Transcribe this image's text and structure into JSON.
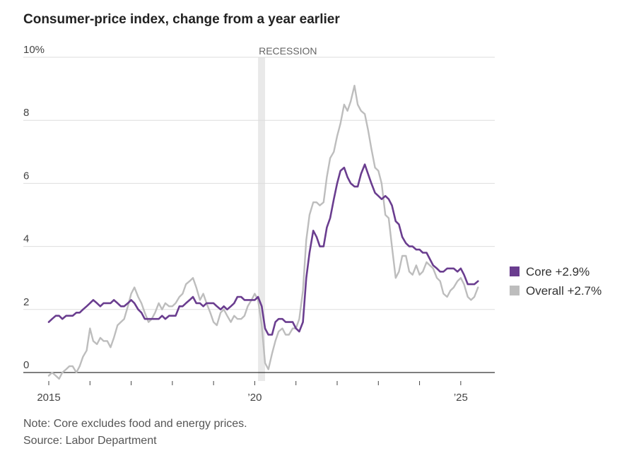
{
  "chart_data": {
    "type": "line",
    "title": "Consumer-price index, change from a year earlier",
    "note": "Note: Core excludes food and energy prices.",
    "source": "Source: Labor Department",
    "ylim": [
      0,
      10
    ],
    "y_ticks": [
      {
        "value": 0,
        "label": "0"
      },
      {
        "value": 2,
        "label": "2"
      },
      {
        "value": 4,
        "label": "4"
      },
      {
        "value": 6,
        "label": "6"
      },
      {
        "value": 8,
        "label": "8"
      },
      {
        "value": 10,
        "label": "10%"
      }
    ],
    "xlim": [
      2015.0,
      2025.5
    ],
    "x_ticks": [
      {
        "value": 2015,
        "label": "2015"
      },
      {
        "value": 2016,
        "label": ""
      },
      {
        "value": 2017,
        "label": ""
      },
      {
        "value": 2018,
        "label": ""
      },
      {
        "value": 2019,
        "label": ""
      },
      {
        "value": 2020,
        "label": "’20"
      },
      {
        "value": 2021,
        "label": ""
      },
      {
        "value": 2022,
        "label": ""
      },
      {
        "value": 2023,
        "label": ""
      },
      {
        "value": 2024,
        "label": ""
      },
      {
        "value": 2025,
        "label": "’25"
      }
    ],
    "recession": {
      "label": "RECESSION",
      "start": 2020.08,
      "end": 2020.25
    },
    "grid": true,
    "legend_position": "right",
    "x": [
      2015.0,
      2015.08,
      2015.17,
      2015.25,
      2015.33,
      2015.42,
      2015.5,
      2015.58,
      2015.67,
      2015.75,
      2015.83,
      2015.92,
      2016.0,
      2016.08,
      2016.17,
      2016.25,
      2016.33,
      2016.42,
      2016.5,
      2016.58,
      2016.67,
      2016.75,
      2016.83,
      2016.92,
      2017.0,
      2017.08,
      2017.17,
      2017.25,
      2017.33,
      2017.42,
      2017.5,
      2017.58,
      2017.67,
      2017.75,
      2017.83,
      2017.92,
      2018.0,
      2018.08,
      2018.17,
      2018.25,
      2018.33,
      2018.42,
      2018.5,
      2018.58,
      2018.67,
      2018.75,
      2018.83,
      2018.92,
      2019.0,
      2019.08,
      2019.17,
      2019.25,
      2019.33,
      2019.42,
      2019.5,
      2019.58,
      2019.67,
      2019.75,
      2019.83,
      2019.92,
      2020.0,
      2020.08,
      2020.17,
      2020.25,
      2020.33,
      2020.42,
      2020.5,
      2020.58,
      2020.67,
      2020.75,
      2020.83,
      2020.92,
      2021.0,
      2021.08,
      2021.17,
      2021.25,
      2021.33,
      2021.42,
      2021.5,
      2021.58,
      2021.67,
      2021.75,
      2021.83,
      2021.92,
      2022.0,
      2022.08,
      2022.17,
      2022.25,
      2022.33,
      2022.42,
      2022.5,
      2022.58,
      2022.67,
      2022.75,
      2022.83,
      2022.92,
      2023.0,
      2023.08,
      2023.17,
      2023.25,
      2023.33,
      2023.42,
      2023.5,
      2023.58,
      2023.67,
      2023.75,
      2023.83,
      2023.92,
      2024.0,
      2024.08,
      2024.17,
      2024.25,
      2024.33,
      2024.42,
      2024.5,
      2024.58,
      2024.67,
      2024.75,
      2024.83,
      2024.92,
      2025.0,
      2025.08,
      2025.17,
      2025.25,
      2025.33,
      2025.42
    ],
    "series": [
      {
        "name": "Core",
        "legend_label": "Core +2.9%",
        "color": "#6a3d8f",
        "values": [
          1.6,
          1.7,
          1.8,
          1.8,
          1.7,
          1.8,
          1.8,
          1.8,
          1.9,
          1.9,
          2.0,
          2.1,
          2.2,
          2.3,
          2.2,
          2.1,
          2.2,
          2.2,
          2.2,
          2.3,
          2.2,
          2.1,
          2.1,
          2.2,
          2.3,
          2.2,
          2.0,
          1.9,
          1.7,
          1.7,
          1.7,
          1.7,
          1.7,
          1.8,
          1.7,
          1.8,
          1.8,
          1.8,
          2.1,
          2.1,
          2.2,
          2.3,
          2.4,
          2.2,
          2.2,
          2.1,
          2.2,
          2.2,
          2.2,
          2.1,
          2.0,
          2.1,
          2.0,
          2.1,
          2.2,
          2.4,
          2.4,
          2.3,
          2.3,
          2.3,
          2.3,
          2.4,
          2.1,
          1.4,
          1.2,
          1.2,
          1.6,
          1.7,
          1.7,
          1.6,
          1.6,
          1.6,
          1.4,
          1.3,
          1.6,
          3.0,
          3.8,
          4.5,
          4.3,
          4.0,
          4.0,
          4.6,
          4.9,
          5.5,
          6.0,
          6.4,
          6.5,
          6.2,
          6.0,
          5.9,
          5.9,
          6.3,
          6.6,
          6.3,
          6.0,
          5.7,
          5.6,
          5.5,
          5.6,
          5.5,
          5.3,
          4.8,
          4.7,
          4.3,
          4.1,
          4.0,
          4.0,
          3.9,
          3.9,
          3.8,
          3.8,
          3.6,
          3.4,
          3.3,
          3.2,
          3.2,
          3.3,
          3.3,
          3.3,
          3.2,
          3.3,
          3.1,
          2.8,
          2.8,
          2.8,
          2.9
        ]
      },
      {
        "name": "Overall",
        "legend_label": "Overall +2.7%",
        "color": "#bdbdbd",
        "values": [
          -0.1,
          0.0,
          -0.1,
          -0.2,
          0.0,
          0.1,
          0.2,
          0.2,
          0.0,
          0.2,
          0.5,
          0.7,
          1.4,
          1.0,
          0.9,
          1.1,
          1.0,
          1.0,
          0.8,
          1.1,
          1.5,
          1.6,
          1.7,
          2.1,
          2.5,
          2.7,
          2.4,
          2.2,
          1.9,
          1.6,
          1.7,
          1.9,
          2.2,
          2.0,
          2.2,
          2.1,
          2.1,
          2.2,
          2.4,
          2.5,
          2.8,
          2.9,
          3.0,
          2.7,
          2.3,
          2.5,
          2.2,
          1.9,
          1.6,
          1.5,
          1.9,
          2.0,
          1.8,
          1.6,
          1.8,
          1.7,
          1.7,
          1.8,
          2.1,
          2.3,
          2.5,
          2.3,
          1.5,
          0.3,
          0.1,
          0.6,
          1.0,
          1.3,
          1.4,
          1.2,
          1.2,
          1.4,
          1.4,
          1.7,
          2.6,
          4.2,
          5.0,
          5.4,
          5.4,
          5.3,
          5.4,
          6.2,
          6.8,
          7.0,
          7.5,
          7.9,
          8.5,
          8.3,
          8.6,
          9.1,
          8.5,
          8.3,
          8.2,
          7.7,
          7.1,
          6.5,
          6.4,
          6.0,
          5.0,
          4.9,
          4.0,
          3.0,
          3.2,
          3.7,
          3.7,
          3.2,
          3.1,
          3.4,
          3.1,
          3.2,
          3.5,
          3.4,
          3.3,
          3.0,
          2.9,
          2.5,
          2.4,
          2.6,
          2.7,
          2.9,
          3.0,
          2.8,
          2.4,
          2.3,
          2.4,
          2.7
        ]
      }
    ]
  }
}
